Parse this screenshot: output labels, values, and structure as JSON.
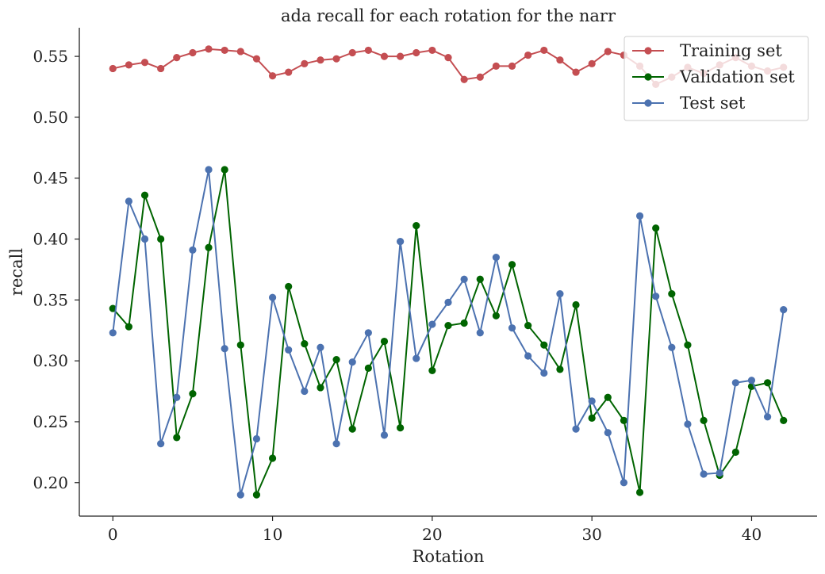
{
  "chart_data": {
    "type": "line",
    "title": "ada recall for each rotation for the narr",
    "xlabel": "Rotation",
    "ylabel": "recall",
    "xlim": [
      -2.1,
      44.1
    ],
    "ylim": [
      0.1725,
      0.5735
    ],
    "xticks": [
      0,
      10,
      20,
      30,
      40
    ],
    "xtick_labels": [
      "0",
      "10",
      "20",
      "30",
      "40"
    ],
    "yticks": [
      0.2,
      0.25,
      0.3,
      0.35,
      0.4,
      0.45,
      0.5,
      0.55
    ],
    "ytick_labels": [
      "0.20",
      "0.25",
      "0.30",
      "0.35",
      "0.40",
      "0.45",
      "0.50",
      "0.55"
    ],
    "legend_position": "top-right",
    "x": [
      0,
      1,
      2,
      3,
      4,
      5,
      6,
      7,
      8,
      9,
      10,
      11,
      12,
      13,
      14,
      15,
      16,
      17,
      18,
      19,
      20,
      21,
      22,
      23,
      24,
      25,
      26,
      27,
      28,
      29,
      30,
      31,
      32,
      33,
      34,
      35,
      36,
      37,
      38,
      39,
      40,
      41,
      42
    ],
    "series": [
      {
        "name": "Training set",
        "color": "#c44e52",
        "values": [
          0.54,
          0.543,
          0.545,
          0.54,
          0.549,
          0.553,
          0.556,
          0.555,
          0.554,
          0.548,
          0.534,
          0.537,
          0.544,
          0.547,
          0.548,
          0.553,
          0.555,
          0.55,
          0.55,
          0.553,
          0.555,
          0.549,
          0.531,
          0.533,
          0.542,
          0.542,
          0.551,
          0.555,
          0.547,
          0.537,
          0.544,
          0.554,
          0.551,
          0.542,
          0.527,
          0.533,
          0.541,
          0.536,
          0.543,
          0.549,
          0.542,
          0.538,
          0.541
        ]
      },
      {
        "name": "Validation set",
        "color": "#006400",
        "values": [
          0.343,
          0.328,
          0.436,
          0.4,
          0.237,
          0.273,
          0.393,
          0.457,
          0.313,
          0.19,
          0.22,
          0.361,
          0.314,
          0.278,
          0.301,
          0.244,
          0.294,
          0.316,
          0.245,
          0.411,
          0.292,
          0.329,
          0.331,
          0.367,
          0.337,
          0.379,
          0.329,
          0.313,
          0.293,
          0.346,
          0.253,
          0.27,
          0.251,
          0.192,
          0.409,
          0.355,
          0.313,
          0.251,
          0.206,
          0.225,
          0.279,
          0.282,
          0.251
        ]
      },
      {
        "name": "Test set",
        "color": "#4c72b0",
        "values": [
          0.323,
          0.431,
          0.4,
          0.232,
          0.27,
          0.391,
          0.457,
          0.31,
          0.19,
          0.236,
          0.352,
          0.309,
          0.275,
          0.311,
          0.232,
          0.299,
          0.323,
          0.239,
          0.398,
          0.302,
          0.33,
          0.348,
          0.367,
          0.323,
          0.385,
          0.327,
          0.304,
          0.29,
          0.355,
          0.244,
          0.267,
          0.241,
          0.2,
          0.419,
          0.353,
          0.311,
          0.248,
          0.207,
          0.208,
          0.282,
          0.284,
          0.254,
          0.342
        ]
      }
    ]
  }
}
